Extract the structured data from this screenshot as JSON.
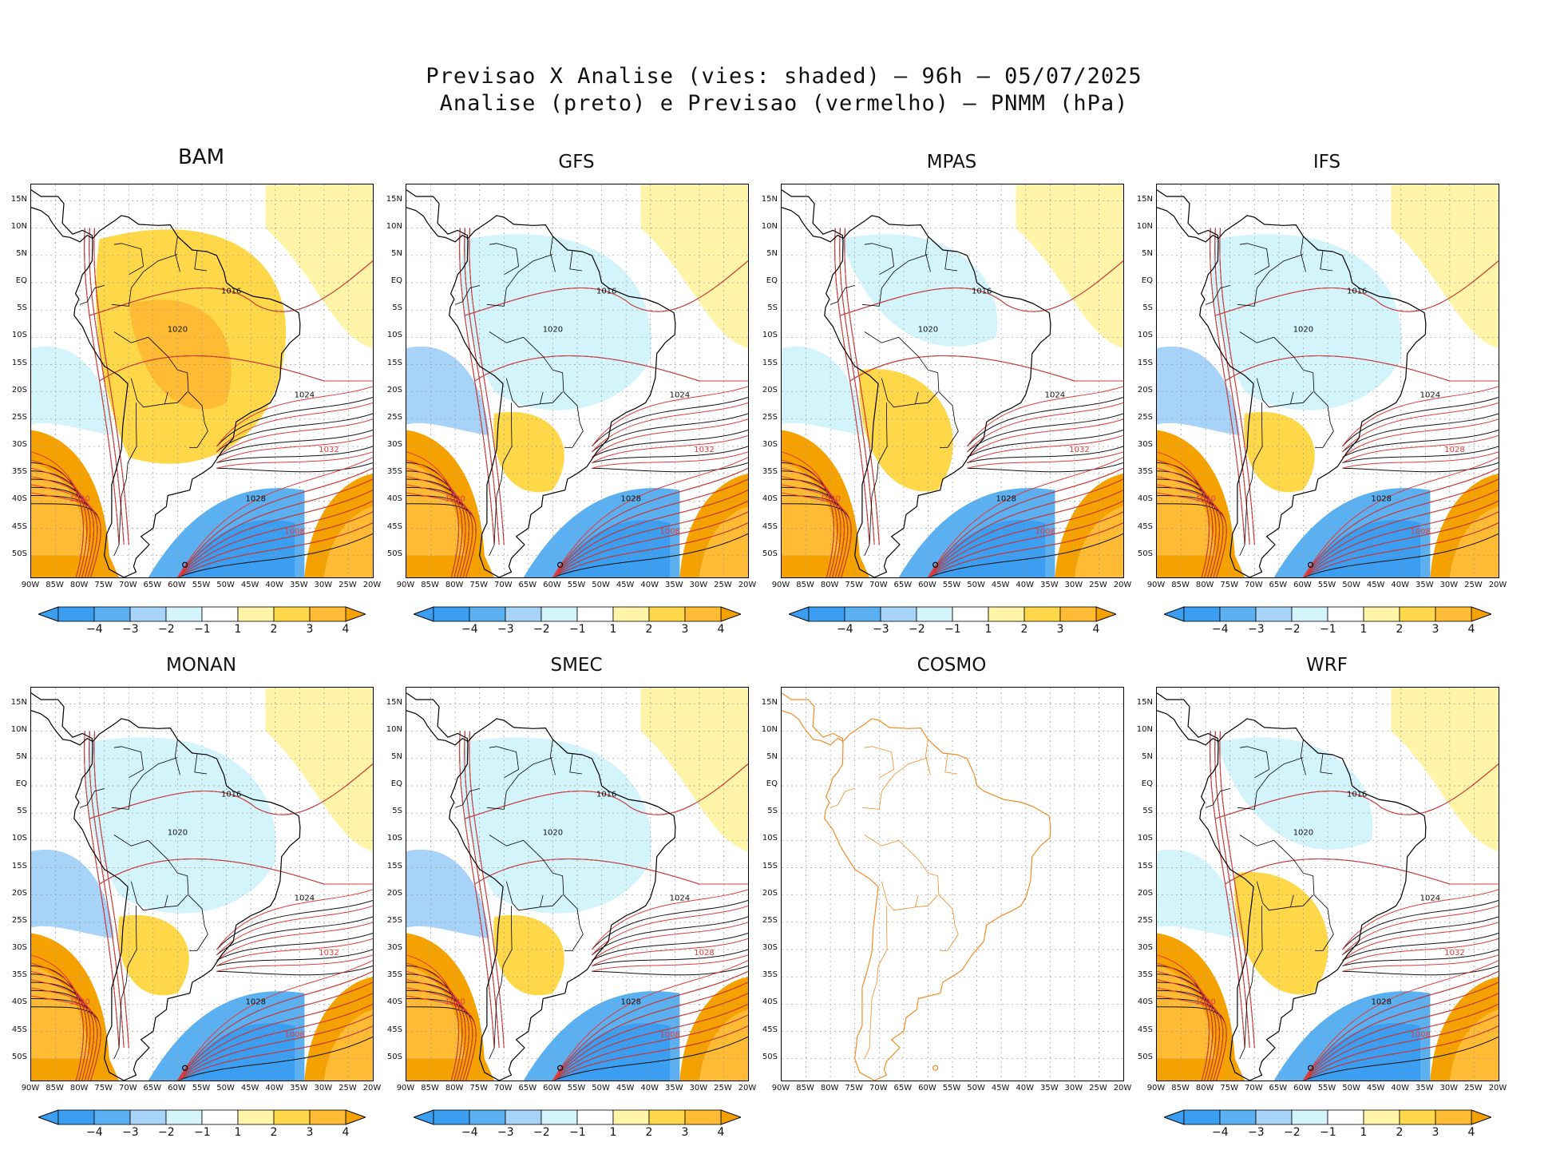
{
  "title": {
    "line1": "Previsao X Analise (vies: shaded) — 96h — 05/07/2025",
    "line2": "Analise (preto) e Previsao (vermelho) — PNMM (hPa)"
  },
  "lat_labels": [
    "15N",
    "10N",
    "5N",
    "EQ",
    "5S",
    "10S",
    "15S",
    "20S",
    "25S",
    "30S",
    "35S",
    "40S",
    "45S",
    "50S"
  ],
  "lon_labels": [
    "90W",
    "85W",
    "80W",
    "75W",
    "70W",
    "65W",
    "60W",
    "55W",
    "50W",
    "45W",
    "40W",
    "35W",
    "30W",
    "25W",
    "20W"
  ],
  "colorbar": {
    "labels": [
      "−4",
      "−3",
      "−2",
      "−1",
      "1",
      "2",
      "3",
      "4"
    ],
    "colors": [
      "#3b9ef0",
      "#5ab0f0",
      "#a6d3f7",
      "#d4f4fb",
      "#ffffff",
      "#fff4a8",
      "#ffd84a",
      "#ffbb33",
      "#f5a200"
    ]
  },
  "colors": {
    "analysis_contour": "#111111",
    "forecast_contour": "#e33b3b",
    "coastline": "#000000",
    "no_data_coastline": "#f28c28"
  },
  "panels": [
    {
      "name": "BAM",
      "variant": "warm",
      "has_data": true,
      "labels": {
        "a1": "1016",
        "a2": "1024",
        "a3": "1028",
        "a4": "1020",
        "f1": "1020",
        "f2": "1032",
        "f3": "1008"
      }
    },
    {
      "name": "GFS",
      "variant": "cool",
      "has_data": true,
      "labels": {
        "a1": "1016",
        "a2": "1024",
        "a3": "1028",
        "a4": "1020",
        "f1": "1020",
        "f2": "1032",
        "f3": "1008"
      }
    },
    {
      "name": "MPAS",
      "variant": "mixed",
      "has_data": true,
      "labels": {
        "a1": "1016",
        "a2": "1024",
        "a3": "1028",
        "a4": "1020",
        "f1": "1020",
        "f2": "1032",
        "f3": "1008"
      }
    },
    {
      "name": "IFS",
      "variant": "cool",
      "has_data": true,
      "labels": {
        "a1": "1016",
        "a2": "1024",
        "a3": "1028",
        "a4": "1020",
        "f1": "1020",
        "f2": "1028",
        "f3": "1008"
      }
    },
    {
      "name": "MONAN",
      "variant": "cool",
      "has_data": true,
      "labels": {
        "a1": "1016",
        "a2": "1024",
        "a3": "1028",
        "a4": "1020",
        "f1": "1020",
        "f2": "1032",
        "f3": "1008"
      }
    },
    {
      "name": "SMEC",
      "variant": "cool",
      "has_data": true,
      "labels": {
        "a1": "1016",
        "a2": "1024",
        "a3": "1028",
        "a4": "1020",
        "f1": "1020",
        "f2": "1028",
        "f3": "1008"
      }
    },
    {
      "name": "COSMO",
      "variant": "none",
      "has_data": false,
      "labels": {
        "a1": "",
        "a2": "",
        "a3": "",
        "a4": "",
        "f1": "",
        "f2": "",
        "f3": ""
      }
    },
    {
      "name": "WRF",
      "variant": "mixed",
      "has_data": true,
      "labels": {
        "a1": "1016",
        "a2": "1024",
        "a3": "1028",
        "a4": "1020",
        "f1": "1020",
        "f2": "1032",
        "f3": "1008"
      }
    }
  ]
}
